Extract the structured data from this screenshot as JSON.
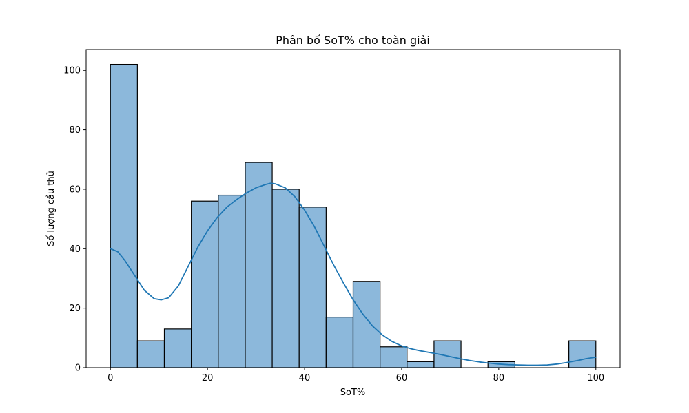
{
  "chart_data": {
    "type": "bar",
    "title": "Phân bố SoT% cho toàn giải",
    "xlabel": "SoT%",
    "ylabel": "Số lượng cầu thủ",
    "xlim": [
      -5,
      105
    ],
    "ylim": [
      0,
      107
    ],
    "xticks": [
      0,
      20,
      40,
      60,
      80,
      100
    ],
    "yticks": [
      0,
      20,
      40,
      60,
      80,
      100
    ],
    "bin_edges": [
      0,
      5.556,
      11.111,
      16.667,
      22.222,
      27.778,
      33.333,
      38.889,
      44.444,
      50,
      55.556,
      61.111,
      66.667,
      72.222,
      77.778,
      83.333,
      88.889,
      94.444,
      100
    ],
    "values": [
      102,
      9,
      13,
      56,
      58,
      69,
      60,
      54,
      17,
      29,
      7,
      2,
      9,
      0,
      2,
      0,
      0,
      9
    ],
    "kde": {
      "x": [
        0,
        1.5,
        3,
        5,
        7,
        9,
        10.5,
        12,
        14,
        16,
        18,
        20,
        22,
        24,
        26,
        28,
        30,
        32,
        33,
        34,
        36,
        38,
        40,
        42,
        44,
        46,
        48,
        50,
        52,
        54,
        56,
        58,
        60,
        62,
        64,
        66,
        68,
        70,
        72,
        74,
        76,
        78,
        80,
        82,
        84,
        86,
        88,
        90,
        92,
        94,
        96,
        98,
        100
      ],
      "y": [
        40,
        39,
        36,
        31,
        26,
        23.2,
        22.8,
        23.5,
        27.5,
        34,
        40.5,
        46,
        50.5,
        54,
        56.5,
        58.7,
        60.5,
        61.6,
        62,
        61.8,
        60.5,
        57.5,
        53,
        47.5,
        41,
        34.5,
        28.5,
        22.8,
        18,
        14,
        11,
        8.8,
        7.3,
        6.3,
        5.6,
        5,
        4.4,
        3.7,
        3,
        2.4,
        1.9,
        1.5,
        1.2,
        1,
        0.9,
        0.8,
        0.8,
        0.9,
        1.2,
        1.7,
        2.3,
        3,
        3.5
      ]
    },
    "grid": false,
    "colors": {
      "bar_fill": "#8cb8db",
      "bar_edge": "#000000",
      "kde_line": "#1f77b4",
      "axes": "#000000"
    }
  }
}
